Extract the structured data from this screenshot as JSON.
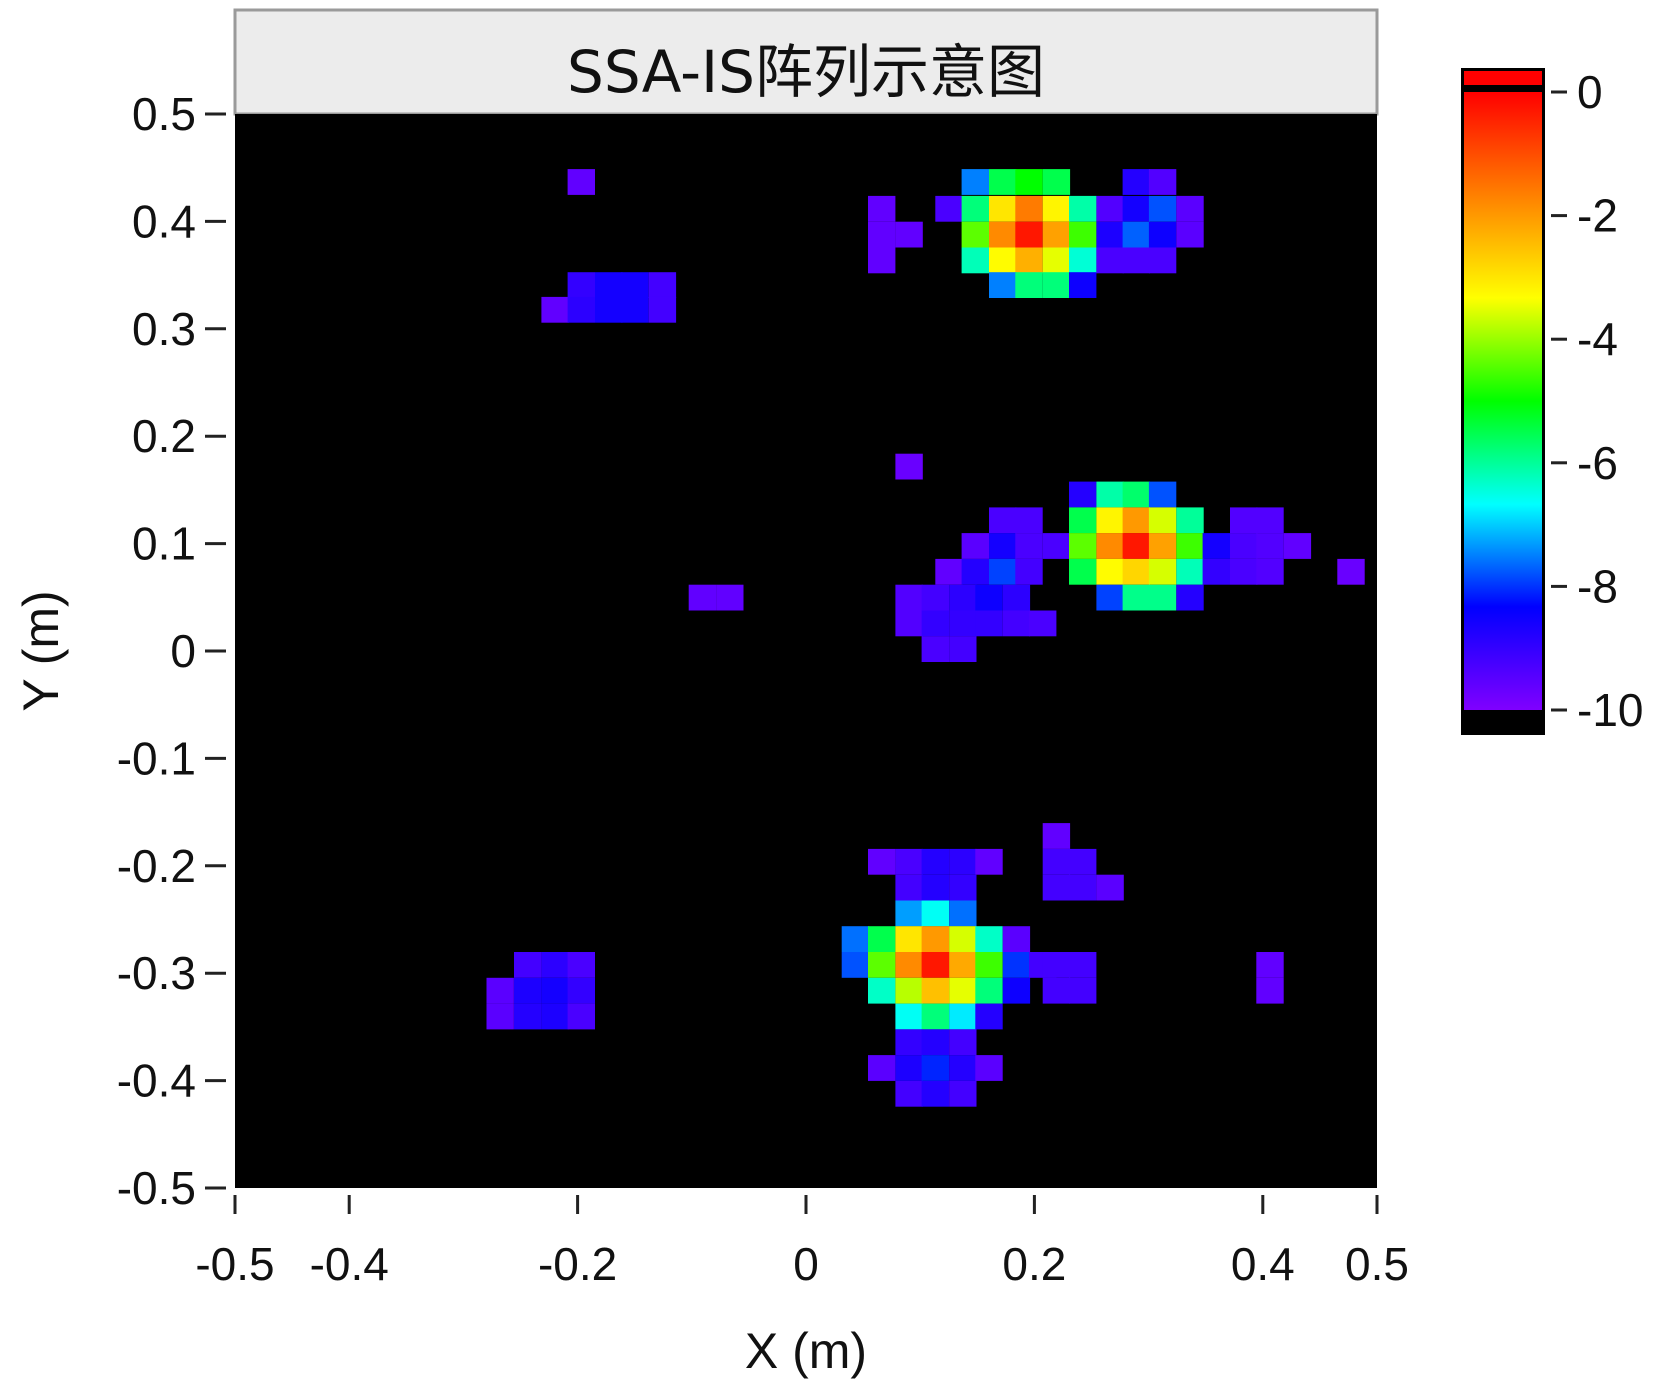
{
  "chart_data": {
    "type": "heatmap",
    "title": "SSA-IS阵列示意图",
    "xlabel": "X (m)",
    "ylabel": "Y (m)",
    "xlim": [
      -0.5,
      0.5
    ],
    "ylim": [
      -0.5,
      0.5
    ],
    "x_ticks": [
      -0.5,
      -0.4,
      -0.2,
      0,
      0.2,
      0.4,
      0.5
    ],
    "x_tick_labels": [
      "-0.5",
      "-0.4",
      "-0.2",
      "0",
      "0.2",
      "0.4",
      "0.5"
    ],
    "y_ticks": [
      0.5,
      0.4,
      0.3,
      0.2,
      0.1,
      0,
      -0.1,
      -0.2,
      -0.3,
      -0.4,
      -0.5
    ],
    "y_tick_labels": [
      "0.5",
      "0.4",
      "0.3",
      "0.2",
      "0.1",
      "0",
      "-0.1",
      "-0.2",
      "-0.3",
      "-0.4",
      "-0.5"
    ],
    "background_color": "#000000",
    "colorbar": {
      "range": [
        -10,
        0
      ],
      "ticks": [
        0,
        -2,
        -4,
        -6,
        -8,
        -10
      ],
      "tick_labels": [
        "0",
        "-2",
        "-4",
        "-6",
        "-8",
        "-10"
      ],
      "colors": [
        "#8000ff",
        "#0000ff",
        "#00ffff",
        "#00ff00",
        "#ffff00",
        "#ff8000",
        "#ff0000"
      ]
    },
    "cell_size": 0.02347,
    "cells": [
      [
        -0.197,
        0.437,
        -9.6
      ],
      [
        0.148,
        0.437,
        -7.5
      ],
      [
        0.172,
        0.437,
        -5.5
      ],
      [
        0.195,
        0.437,
        -5.0
      ],
      [
        0.219,
        0.437,
        -5.5
      ],
      [
        0.289,
        0.437,
        -8.8
      ],
      [
        0.312,
        0.437,
        -9.4
      ],
      [
        0.066,
        0.412,
        -9.6
      ],
      [
        0.125,
        0.412,
        -9.3
      ],
      [
        0.148,
        0.412,
        -5.8
      ],
      [
        0.172,
        0.412,
        -3.0
      ],
      [
        0.195,
        0.412,
        -1.6
      ],
      [
        0.219,
        0.412,
        -3.2
      ],
      [
        0.242,
        0.412,
        -6.1
      ],
      [
        0.266,
        0.412,
        -9.4
      ],
      [
        0.289,
        0.412,
        -8.6
      ],
      [
        0.312,
        0.412,
        -7.8
      ],
      [
        0.336,
        0.412,
        -9.5
      ],
      [
        0.066,
        0.388,
        -9.6
      ],
      [
        0.09,
        0.388,
        -9.6
      ],
      [
        0.148,
        0.388,
        -4.4
      ],
      [
        0.172,
        0.388,
        -1.8
      ],
      [
        0.195,
        0.388,
        -0.3
      ],
      [
        0.219,
        0.388,
        -2.1
      ],
      [
        0.242,
        0.388,
        -4.6
      ],
      [
        0.266,
        0.388,
        -8.7
      ],
      [
        0.289,
        0.388,
        -7.7
      ],
      [
        0.312,
        0.388,
        -8.5
      ],
      [
        0.336,
        0.388,
        -9.5
      ],
      [
        0.066,
        0.364,
        -9.6
      ],
      [
        0.148,
        0.364,
        -6.2
      ],
      [
        0.172,
        0.364,
        -3.3
      ],
      [
        0.195,
        0.364,
        -2.3
      ],
      [
        0.219,
        0.364,
        -3.5
      ],
      [
        0.242,
        0.364,
        -6.4
      ],
      [
        0.266,
        0.364,
        -9.3
      ],
      [
        0.289,
        0.364,
        -9.3
      ],
      [
        0.312,
        0.364,
        -9.3
      ],
      [
        0.172,
        0.341,
        -7.5
      ],
      [
        0.195,
        0.341,
        -5.8
      ],
      [
        0.219,
        0.341,
        -5.8
      ],
      [
        0.242,
        0.341,
        -8.5
      ],
      [
        -0.197,
        0.341,
        -9.0
      ],
      [
        -0.173,
        0.341,
        -8.6
      ],
      [
        -0.15,
        0.341,
        -8.6
      ],
      [
        -0.126,
        0.341,
        -9.2
      ],
      [
        -0.22,
        0.318,
        -9.6
      ],
      [
        -0.197,
        0.318,
        -8.9
      ],
      [
        -0.173,
        0.318,
        -8.6
      ],
      [
        -0.15,
        0.318,
        -8.6
      ],
      [
        -0.126,
        0.318,
        -9.2
      ],
      [
        0.09,
        0.172,
        -9.7
      ],
      [
        0.242,
        0.146,
        -8.8
      ],
      [
        0.266,
        0.146,
        -6.1
      ],
      [
        0.289,
        0.146,
        -5.7
      ],
      [
        0.312,
        0.146,
        -7.8
      ],
      [
        0.172,
        0.122,
        -9.3
      ],
      [
        0.195,
        0.122,
        -9.3
      ],
      [
        0.242,
        0.122,
        -5.5
      ],
      [
        0.266,
        0.122,
        -3.2
      ],
      [
        0.289,
        0.122,
        -2.0
      ],
      [
        0.312,
        0.122,
        -3.6
      ],
      [
        0.336,
        0.122,
        -6.0
      ],
      [
        0.383,
        0.122,
        -9.4
      ],
      [
        0.406,
        0.122,
        -9.4
      ],
      [
        0.148,
        0.098,
        -9.5
      ],
      [
        0.172,
        0.098,
        -8.6
      ],
      [
        0.195,
        0.098,
        -9.3
      ],
      [
        0.219,
        0.098,
        -9.3
      ],
      [
        0.242,
        0.098,
        -4.4
      ],
      [
        0.266,
        0.098,
        -1.8
      ],
      [
        0.289,
        0.098,
        -0.3
      ],
      [
        0.312,
        0.098,
        -2.1
      ],
      [
        0.336,
        0.098,
        -4.6
      ],
      [
        0.359,
        0.098,
        -8.6
      ],
      [
        0.383,
        0.098,
        -9.3
      ],
      [
        0.406,
        0.098,
        -9.4
      ],
      [
        0.43,
        0.098,
        -9.6
      ],
      [
        0.125,
        0.074,
        -9.6
      ],
      [
        0.148,
        0.074,
        -8.8
      ],
      [
        0.172,
        0.074,
        -7.9
      ],
      [
        0.195,
        0.074,
        -9.2
      ],
      [
        0.242,
        0.074,
        -5.5
      ],
      [
        0.266,
        0.074,
        -3.3
      ],
      [
        0.289,
        0.074,
        -2.8
      ],
      [
        0.312,
        0.074,
        -3.6
      ],
      [
        0.336,
        0.074,
        -6.2
      ],
      [
        0.359,
        0.074,
        -9.0
      ],
      [
        0.383,
        0.074,
        -9.3
      ],
      [
        0.406,
        0.074,
        -9.4
      ],
      [
        0.477,
        0.074,
        -9.7
      ],
      [
        -0.091,
        0.05,
        -9.6
      ],
      [
        -0.067,
        0.05,
        -9.6
      ],
      [
        0.09,
        0.05,
        -9.4
      ],
      [
        0.113,
        0.05,
        -9.2
      ],
      [
        0.137,
        0.05,
        -8.9
      ],
      [
        0.16,
        0.05,
        -8.5
      ],
      [
        0.184,
        0.05,
        -8.9
      ],
      [
        0.266,
        0.05,
        -7.9
      ],
      [
        0.289,
        0.05,
        -5.9
      ],
      [
        0.312,
        0.05,
        -5.9
      ],
      [
        0.336,
        0.05,
        -8.8
      ],
      [
        0.09,
        0.026,
        -9.4
      ],
      [
        0.113,
        0.026,
        -9.0
      ],
      [
        0.137,
        0.026,
        -9.0
      ],
      [
        0.16,
        0.026,
        -9.0
      ],
      [
        0.184,
        0.026,
        -9.2
      ],
      [
        0.207,
        0.026,
        -9.3
      ],
      [
        0.113,
        0.002,
        -9.3
      ],
      [
        0.137,
        0.002,
        -9.2
      ],
      [
        0.219,
        -0.172,
        -9.6
      ],
      [
        0.066,
        -0.196,
        -9.6
      ],
      [
        0.09,
        -0.196,
        -9.3
      ],
      [
        0.113,
        -0.196,
        -8.8
      ],
      [
        0.137,
        -0.196,
        -8.9
      ],
      [
        0.16,
        -0.196,
        -9.6
      ],
      [
        0.219,
        -0.196,
        -9.2
      ],
      [
        0.242,
        -0.196,
        -9.2
      ],
      [
        0.09,
        -0.22,
        -9.2
      ],
      [
        0.113,
        -0.22,
        -8.8
      ],
      [
        0.137,
        -0.22,
        -9.0
      ],
      [
        0.219,
        -0.22,
        -9.2
      ],
      [
        0.242,
        -0.22,
        -9.2
      ],
      [
        0.266,
        -0.22,
        -9.5
      ],
      [
        0.09,
        -0.244,
        -7.3
      ],
      [
        0.113,
        -0.244,
        -6.6
      ],
      [
        0.137,
        -0.244,
        -7.6
      ],
      [
        0.043,
        -0.268,
        -7.6
      ],
      [
        0.066,
        -0.268,
        -5.5
      ],
      [
        0.09,
        -0.268,
        -3.0
      ],
      [
        0.113,
        -0.268,
        -2.0
      ],
      [
        0.137,
        -0.268,
        -3.6
      ],
      [
        0.16,
        -0.268,
        -6.3
      ],
      [
        0.184,
        -0.268,
        -9.5
      ],
      [
        0.043,
        -0.292,
        -7.8
      ],
      [
        0.066,
        -0.292,
        -4.4
      ],
      [
        0.09,
        -0.292,
        -1.8
      ],
      [
        0.113,
        -0.292,
        -0.3
      ],
      [
        0.137,
        -0.292,
        -2.2
      ],
      [
        0.16,
        -0.292,
        -4.6
      ],
      [
        0.184,
        -0.292,
        -8.0
      ],
      [
        0.207,
        -0.292,
        -9.2
      ],
      [
        0.219,
        -0.292,
        -9.2
      ],
      [
        0.242,
        -0.292,
        -9.2
      ],
      [
        0.406,
        -0.292,
        -9.6
      ],
      [
        0.066,
        -0.316,
        -6.3
      ],
      [
        0.09,
        -0.316,
        -3.8
      ],
      [
        0.113,
        -0.316,
        -2.5
      ],
      [
        0.137,
        -0.316,
        -3.5
      ],
      [
        0.16,
        -0.316,
        -5.8
      ],
      [
        0.184,
        -0.316,
        -8.5
      ],
      [
        0.219,
        -0.316,
        -9.2
      ],
      [
        0.242,
        -0.316,
        -9.2
      ],
      [
        0.406,
        -0.316,
        -9.6
      ],
      [
        0.09,
        -0.34,
        -6.6
      ],
      [
        0.113,
        -0.34,
        -5.8
      ],
      [
        0.137,
        -0.34,
        -6.8
      ],
      [
        0.16,
        -0.34,
        -8.8
      ],
      [
        0.09,
        -0.364,
        -9.0
      ],
      [
        0.113,
        -0.364,
        -8.8
      ],
      [
        0.137,
        -0.364,
        -9.2
      ],
      [
        0.066,
        -0.388,
        -9.5
      ],
      [
        0.09,
        -0.388,
        -8.7
      ],
      [
        0.113,
        -0.388,
        -8.1
      ],
      [
        0.137,
        -0.388,
        -8.8
      ],
      [
        0.16,
        -0.388,
        -9.5
      ],
      [
        0.09,
        -0.412,
        -9.2
      ],
      [
        0.113,
        -0.412,
        -8.8
      ],
      [
        0.137,
        -0.412,
        -9.2
      ],
      [
        -0.244,
        -0.292,
        -9.2
      ],
      [
        -0.22,
        -0.292,
        -8.9
      ],
      [
        -0.197,
        -0.292,
        -9.3
      ],
      [
        -0.268,
        -0.316,
        -9.5
      ],
      [
        -0.244,
        -0.316,
        -8.7
      ],
      [
        -0.22,
        -0.316,
        -8.6
      ],
      [
        -0.197,
        -0.316,
        -9.0
      ],
      [
        -0.268,
        -0.34,
        -9.5
      ],
      [
        -0.244,
        -0.34,
        -8.8
      ],
      [
        -0.22,
        -0.34,
        -8.7
      ],
      [
        -0.197,
        -0.34,
        -9.3
      ]
    ]
  }
}
